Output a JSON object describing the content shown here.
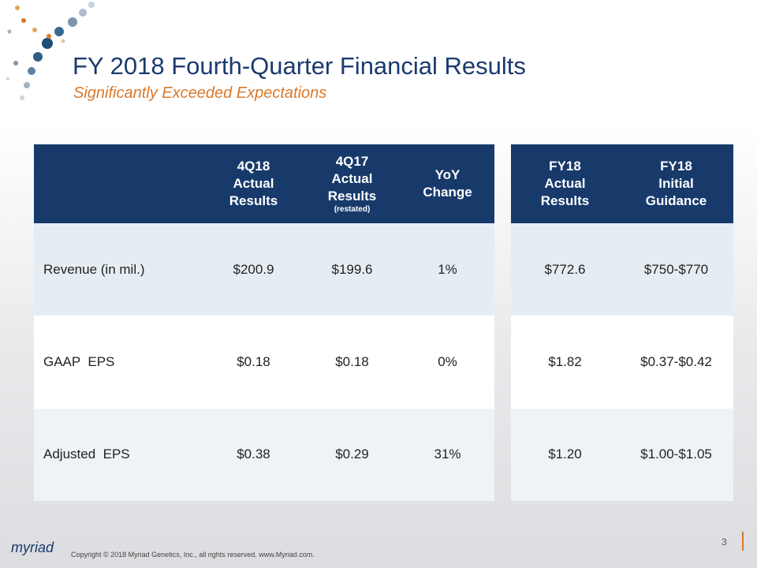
{
  "header": {
    "title": "FY 2018 Fourth-Quarter Financial Results",
    "subtitle": "Significantly Exceeded Expectations"
  },
  "table": {
    "columns": [
      {
        "lines": [
          "4Q18",
          "Actual",
          "Results"
        ]
      },
      {
        "lines": [
          "4Q17",
          "Actual",
          "Results"
        ],
        "note": "(restated)"
      },
      {
        "lines": [
          "YoY",
          "Change"
        ]
      },
      {
        "lines": [
          "FY18",
          "Actual",
          "Results"
        ]
      },
      {
        "lines": [
          "FY18",
          "Initial",
          "Guidance"
        ]
      }
    ],
    "rows": [
      [
        "Revenue (in mil.)",
        "$200.9",
        "$199.6",
        "1%",
        "$772.6",
        "$750-$770"
      ],
      [
        "GAAP  EPS",
        "$0.18",
        "$0.18",
        "0%",
        "$1.82",
        "$0.37-$0.42"
      ],
      [
        "Adjusted  EPS",
        "$0.38",
        "$0.29",
        "31%",
        "$1.20",
        "$1.00-$1.05"
      ]
    ]
  },
  "footer": {
    "logo": "myriad",
    "copyright": "Copyright © 2018  Myriad Genetics, Inc., all rights reserved.  www.Myriad.com.",
    "page": "3"
  }
}
